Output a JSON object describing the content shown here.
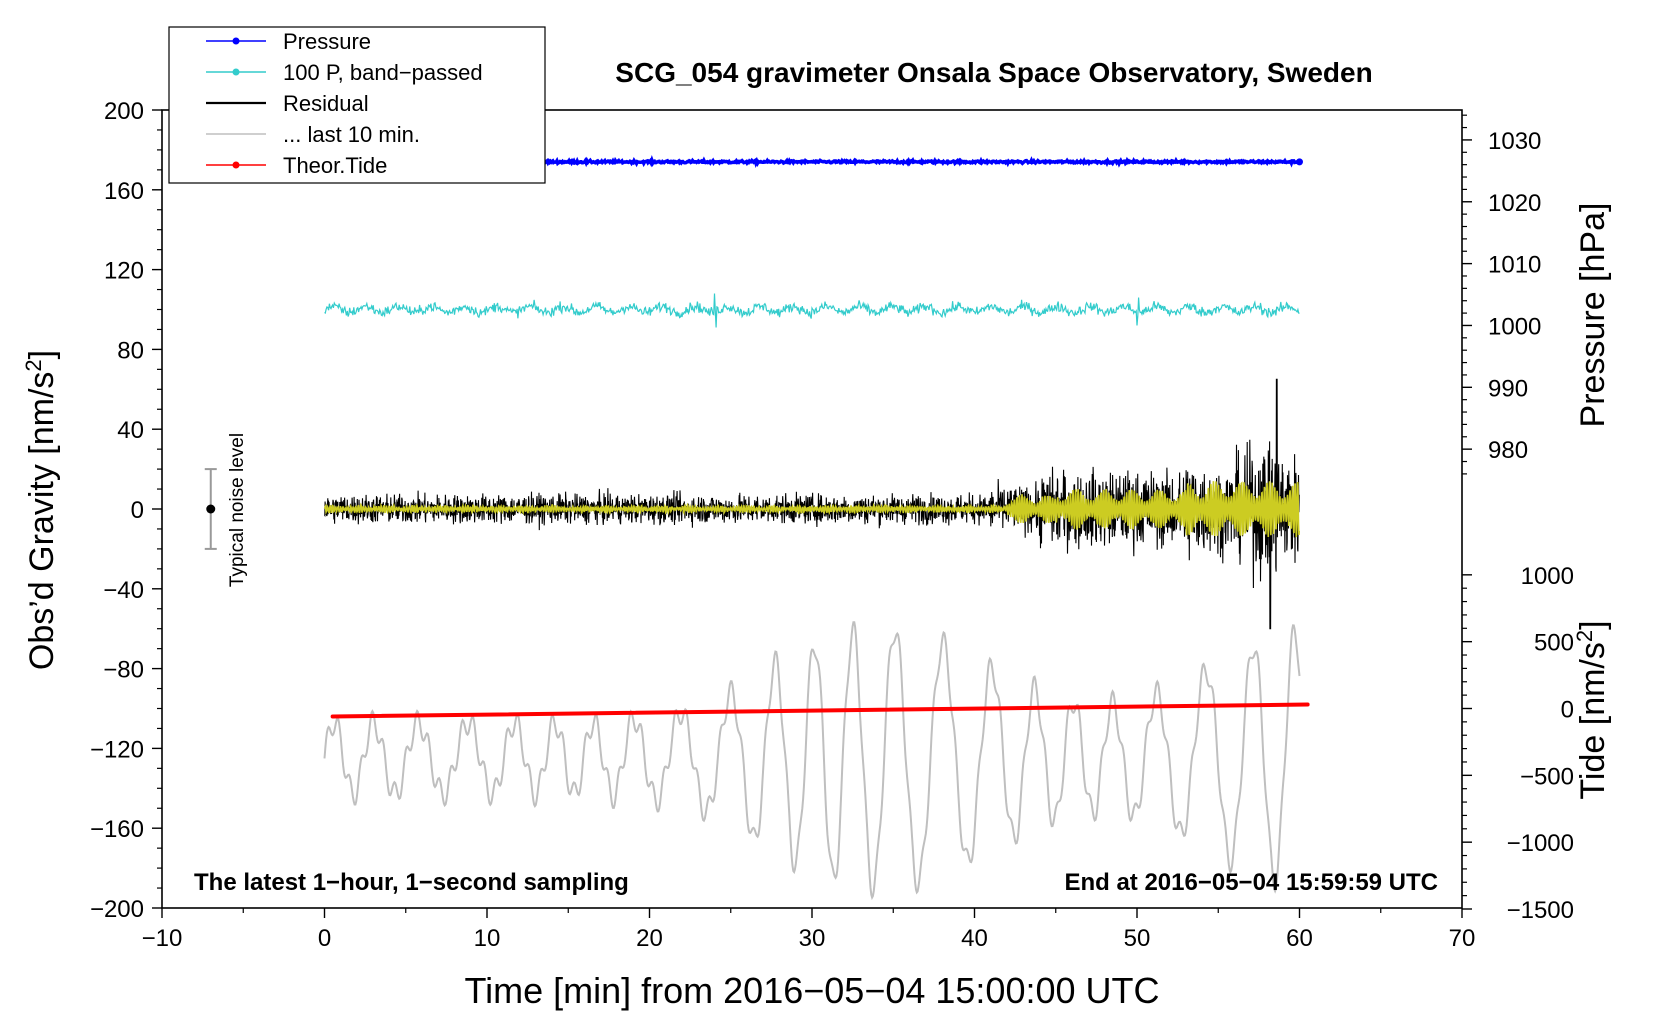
{
  "chart_data": {
    "type": "line",
    "title": "SCG_054 gravimeter Onsala Space Observatory, Sweden",
    "xlabel": "Time [min] from 2016−05−04 15:00:00 UTC",
    "ylabel_main": "Obs’d Gravity [nm/s",
    "ylabel_pressure": "Pressure [hPa]",
    "ylabel_tide": "Tide [nm/s",
    "sup2": "2",
    "close_bracket": "]",
    "xlim": [
      -10,
      70
    ],
    "ylim_gravity": [
      -200,
      200
    ],
    "pressure_range_hpa": [
      975,
      1035
    ],
    "tide_range": [
      -1500,
      1500
    ],
    "x_ticks": [
      "−10",
      "0",
      "10",
      "20",
      "30",
      "40",
      "50",
      "60",
      "70"
    ],
    "y_ticks_gravity": [
      "200",
      "160",
      "120",
      "80",
      "40",
      "0",
      "−40",
      "−80",
      "−120",
      "−160",
      "−200"
    ],
    "y_ticks_pressure": [
      "1030",
      "1020",
      "1010",
      "1000",
      "990",
      "980"
    ],
    "y_ticks_tide": [
      "1000",
      "500",
      "0",
      "−500",
      "−1000",
      "−1500"
    ],
    "legend": [
      {
        "name": "Pressure",
        "color": "#0000ff",
        "marker": true
      },
      {
        "name": "100 P, band−passed",
        "color": "#33cccc",
        "marker": true
      },
      {
        "name": "Residual",
        "color": "#000000",
        "marker": false
      },
      {
        "name": "... last 10 min.",
        "color": "#bfbfbf",
        "marker": false
      },
      {
        "name": "Theor.Tide",
        "color": "#ff0000",
        "marker": true
      }
    ],
    "noise_label": "Typical noise level",
    "noise_bar": {
      "x": -7,
      "center": 0,
      "half_range": 20
    },
    "annotation_left": "The latest 1−hour, 1−second sampling",
    "annotation_right": "End at 2016−05−04 15:59:59 UTC",
    "series": [
      {
        "name": "Pressure",
        "axis": "gravity",
        "x_range": [
          0,
          60
        ],
        "mean": 174,
        "noise": 0.6
      },
      {
        "name": "100 P, band−passed",
        "axis": "gravity",
        "x_range": [
          0,
          60
        ],
        "mean": 100,
        "noise": 2.5,
        "spikes": [
          [
            24,
            8
          ],
          [
            24.1,
            -9
          ],
          [
            50,
            -8
          ],
          [
            50.1,
            6
          ]
        ]
      },
      {
        "name": "Residual",
        "axis": "gravity",
        "x_range": [
          0,
          60
        ],
        "mean": 0,
        "peak": 65,
        "trough": -60
      },
      {
        "name": "Residual smoothed",
        "axis": "gravity",
        "x_range": [
          0,
          60
        ],
        "mean": 0
      },
      {
        "name": "... last 10 min.",
        "axis": "gravity",
        "x_range": [
          0,
          60
        ],
        "mean": -125,
        "amplitude": 65
      },
      {
        "name": "Theor.Tide",
        "axis": "tide",
        "x_range": [
          0.5,
          60.5
        ],
        "values": [
          [
            0.5,
            -60
          ],
          [
            60.5,
            30
          ]
        ]
      }
    ],
    "colors": {
      "pressure": "#0000ff",
      "bandpassed": "#33cccc",
      "residual": "#000000",
      "residual_smooth": "#cccc22",
      "last10": "#bfbfbf",
      "tide": "#ff0000",
      "noise_bar": "#999999"
    }
  }
}
